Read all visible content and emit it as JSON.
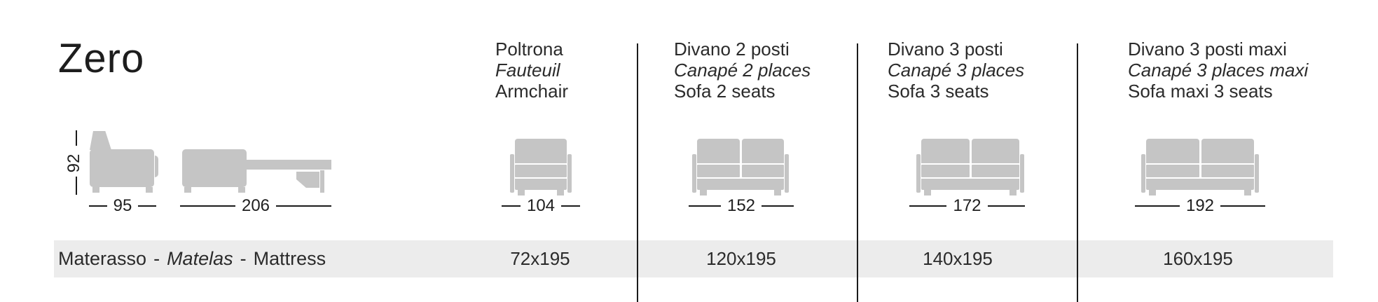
{
  "title": "Zero",
  "colors": {
    "sofa_gray": "#c5c5c5",
    "bar_gray": "#ececec",
    "line_black": "#1b1b1b",
    "text": "#2b2b2b"
  },
  "side_view": {
    "height_dim": "92",
    "closed_depth_dim": "95",
    "open_depth_dim": "206"
  },
  "columns": [
    {
      "name_it": "Poltrona",
      "name_fr": "Fauteuil",
      "name_en": "Armchair",
      "width_dim": "104",
      "mattress_size": "72x195"
    },
    {
      "name_it": "Divano 2 posti",
      "name_fr": "Canapé 2 places",
      "name_en": "Sofa 2 seats",
      "width_dim": "152",
      "mattress_size": "120x195"
    },
    {
      "name_it": "Divano 3 posti",
      "name_fr": "Canapé 3 places",
      "name_en": "Sofa 3 seats",
      "width_dim": "172",
      "mattress_size": "140x195"
    },
    {
      "name_it": "Divano 3 posti maxi",
      "name_fr": "Canapé 3 places maxi",
      "name_en": "Sofa maxi 3 seats",
      "width_dim": "192",
      "mattress_size": "160x195"
    }
  ],
  "mattress_row": {
    "label_it": "Materasso",
    "label_fr": "Matelas",
    "label_en": "Mattress",
    "separator": "-"
  }
}
